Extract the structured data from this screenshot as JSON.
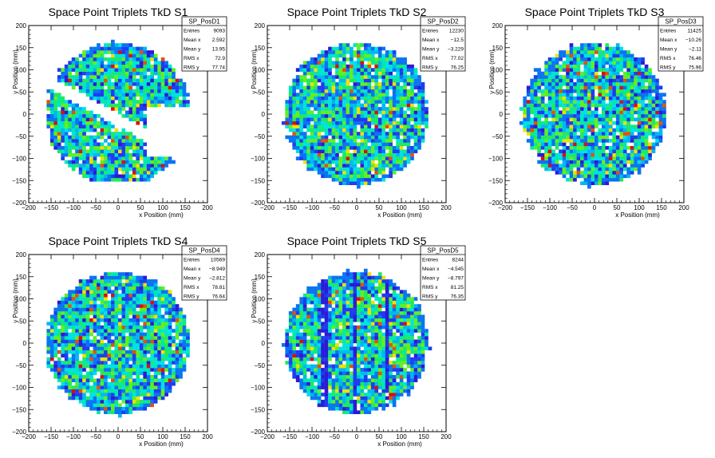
{
  "colors": {
    "frame": "#000000",
    "background": "#ffffff",
    "stats_box": "#ffffff"
  },
  "chart_data": [
    {
      "type": "heatmap",
      "title": "Space Point Triplets TkD S1",
      "xlabel": "x Position (mm)",
      "ylabel": "y Position (mm)",
      "xlim": [
        -200,
        200
      ],
      "ylim": [
        -200,
        200
      ],
      "xticks": [
        "−200",
        "−150",
        "−100",
        "−50",
        "0",
        "50",
        "100",
        "150",
        "200"
      ],
      "yticks": [
        "−200",
        "−150",
        "−100",
        "−50",
        "0",
        "50",
        "100",
        "150",
        "200"
      ],
      "stats": {
        "name": "SP_PosD1",
        "rows": [
          [
            "Entries",
            "9093"
          ],
          [
            "Mean x",
            "2.592"
          ],
          [
            "Mean y",
            "13.95"
          ],
          [
            "RMS x",
            "72.9"
          ],
          [
            "RMS y",
            "77.74"
          ]
        ]
      },
      "shape": "disk_with_diagonal_gap",
      "radius": 160
    },
    {
      "type": "heatmap",
      "title": "Space Point Triplets TkD S2",
      "xlabel": "x Position (mm)",
      "ylabel": "y Position (mm)",
      "xlim": [
        -200,
        200
      ],
      "ylim": [
        -200,
        200
      ],
      "xticks": [
        "−200",
        "−150",
        "−100",
        "−50",
        "0",
        "50",
        "100",
        "150",
        "200"
      ],
      "yticks": [
        "−200",
        "−150",
        "−100",
        "−50",
        "0",
        "50",
        "100",
        "150",
        "200"
      ],
      "stats": {
        "name": "SP_PosD2",
        "rows": [
          [
            "Entries",
            "12230"
          ],
          [
            "Mean x",
            "−12.5"
          ],
          [
            "Mean y",
            "−3.229"
          ],
          [
            "RMS x",
            "77.02"
          ],
          [
            "RMS y",
            "76.25"
          ]
        ]
      },
      "shape": "disk",
      "radius": 160
    },
    {
      "type": "heatmap",
      "title": "Space Point Triplets TkD S3",
      "xlabel": "x Position (mm)",
      "ylabel": "y Position (mm)",
      "xlim": [
        -200,
        200
      ],
      "ylim": [
        -200,
        200
      ],
      "xticks": [
        "−200",
        "−150",
        "−100",
        "−50",
        "0",
        "50",
        "100",
        "150",
        "200"
      ],
      "yticks": [
        "−200",
        "−150",
        "−100",
        "−50",
        "0",
        "50",
        "100",
        "150",
        "200"
      ],
      "stats": {
        "name": "SP_PosD3",
        "rows": [
          [
            "Entries",
            "11425"
          ],
          [
            "Mean x",
            "−10.26"
          ],
          [
            "Mean y",
            "−2.11"
          ],
          [
            "RMS x",
            "76.46"
          ],
          [
            "RMS y",
            "75.96"
          ]
        ]
      },
      "shape": "disk",
      "radius": 160
    },
    {
      "type": "heatmap",
      "title": "Space Point Triplets TkD S4",
      "xlabel": "x Position (mm)",
      "ylabel": "y Position (mm)",
      "xlim": [
        -200,
        200
      ],
      "ylim": [
        -200,
        200
      ],
      "xticks": [
        "−200",
        "−150",
        "−100",
        "−50",
        "0",
        "50",
        "100",
        "150",
        "200"
      ],
      "yticks": [
        "−200",
        "−150",
        "−100",
        "−50",
        "0",
        "50",
        "100",
        "150",
        "200"
      ],
      "stats": {
        "name": "SP_PosD4",
        "rows": [
          [
            "Entries",
            "10569"
          ],
          [
            "Mean x",
            "−8.949"
          ],
          [
            "Mean y",
            "−2.812"
          ],
          [
            "RMS x",
            "78.81"
          ],
          [
            "RMS y",
            "76.64"
          ]
        ]
      },
      "shape": "disk",
      "radius": 160
    },
    {
      "type": "heatmap",
      "title": "Space Point Triplets TkD S5",
      "xlabel": "x Position (mm)",
      "ylabel": "y Position (mm)",
      "xlim": [
        -200,
        200
      ],
      "ylim": [
        -200,
        200
      ],
      "xticks": [
        "−200",
        "−150",
        "−100",
        "−50",
        "0",
        "50",
        "100",
        "150",
        "200"
      ],
      "yticks": [
        "−200",
        "−150",
        "−100",
        "−50",
        "0",
        "50",
        "100",
        "150",
        "200"
      ],
      "stats": {
        "name": "SP_PosD5",
        "rows": [
          [
            "Entries",
            "8244"
          ],
          [
            "Mean x",
            "−4.545"
          ],
          [
            "Mean y",
            "−8.797"
          ],
          [
            "RMS x",
            "81.25"
          ],
          [
            "RMS y",
            "76.35"
          ]
        ]
      },
      "shape": "disk_with_stripes",
      "radius": 160
    }
  ]
}
